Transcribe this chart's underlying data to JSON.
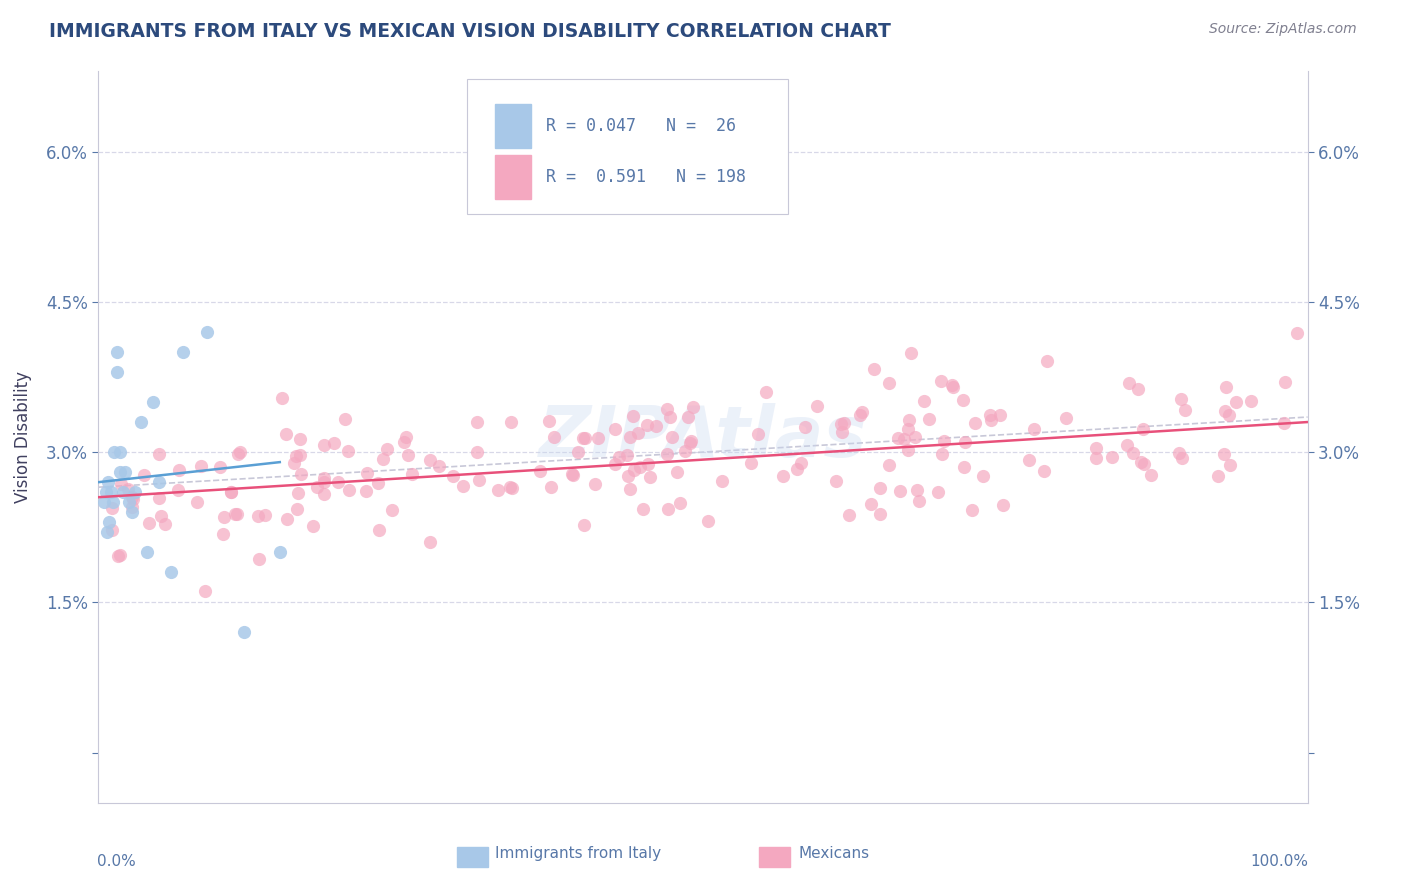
{
  "title": "IMMIGRANTS FROM ITALY VS MEXICAN VISION DISABILITY CORRELATION CHART",
  "source": "Source: ZipAtlas.com",
  "ylabel": "Vision Disability",
  "xlim": [
    0.0,
    1.0
  ],
  "ylim": [
    -0.005,
    0.068
  ],
  "yticks": [
    0.0,
    0.015,
    0.03,
    0.045,
    0.06
  ],
  "ytick_labels": [
    "",
    "1.5%",
    "3.0%",
    "4.5%",
    "6.0%"
  ],
  "legend_R1": "0.047",
  "legend_N1": "26",
  "legend_R2": "0.591",
  "legend_N2": "198",
  "color_italy": "#a8c8e8",
  "color_mexico": "#f4a8c0",
  "line_color_italy": "#5a9fd4",
  "line_color_mexico": "#e8507a",
  "dashed_color": "#c8c8d8",
  "title_color": "#2c4a7c",
  "tick_color": "#5878a8",
  "label_color": "#404060",
  "background_color": "#ffffff",
  "grid_color": "#d8d8e8",
  "italy_x": [
    0.005,
    0.006,
    0.007,
    0.008,
    0.009,
    0.01,
    0.012,
    0.013,
    0.015,
    0.015,
    0.018,
    0.018,
    0.02,
    0.022,
    0.025,
    0.028,
    0.03,
    0.035,
    0.04,
    0.045,
    0.05,
    0.06,
    0.07,
    0.09,
    0.12,
    0.15
  ],
  "italy_y": [
    0.025,
    0.026,
    0.022,
    0.027,
    0.023,
    0.026,
    0.025,
    0.03,
    0.038,
    0.04,
    0.028,
    0.03,
    0.026,
    0.028,
    0.025,
    0.024,
    0.026,
    0.033,
    0.02,
    0.035,
    0.027,
    0.018,
    0.04,
    0.042,
    0.012,
    0.02
  ],
  "italy_line_x": [
    0.0,
    0.15
  ],
  "italy_line_y": [
    0.027,
    0.029
  ],
  "mexico_line_x": [
    0.0,
    1.0
  ],
  "mexico_line_y": [
    0.0255,
    0.033
  ],
  "dashed_line_x": [
    0.0,
    1.0
  ],
  "dashed_line_y": [
    0.0265,
    0.0335
  ],
  "watermark_text": "ZIPAtlas",
  "watermark_color": "#c8d8f0",
  "watermark_alpha": 0.35,
  "source_color": "#808090"
}
